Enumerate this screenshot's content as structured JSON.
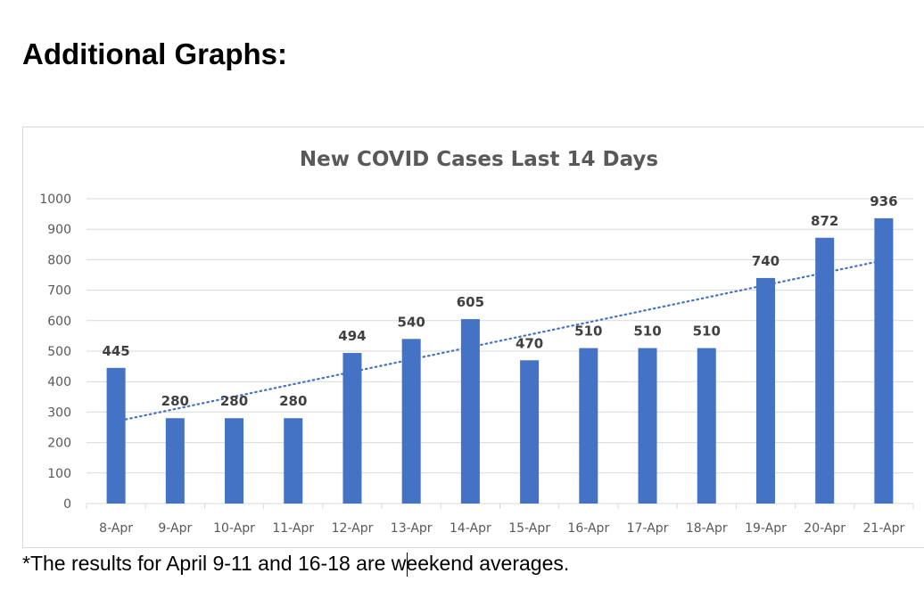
{
  "heading": "Additional Graphs:",
  "footnote": "*The results for April 9-11 and 16-18 are weekend averages.",
  "colors": {
    "bar": "#4472c4",
    "trendline": "#4472c4",
    "grid": "#d9d9d9",
    "title": "#595959",
    "label": "#404040",
    "tick": "#595959"
  },
  "chart_data": {
    "type": "bar",
    "title": "New COVID Cases Last 14 Days",
    "xlabel": "",
    "ylabel": "",
    "categories": [
      "8-Apr",
      "9-Apr",
      "10-Apr",
      "11-Apr",
      "12-Apr",
      "13-Apr",
      "14-Apr",
      "15-Apr",
      "16-Apr",
      "17-Apr",
      "18-Apr",
      "19-Apr",
      "20-Apr",
      "21-Apr"
    ],
    "values": [
      445,
      280,
      280,
      280,
      494,
      540,
      605,
      470,
      510,
      510,
      510,
      740,
      872,
      936
    ],
    "ylim": [
      0,
      1000
    ],
    "yticks": [
      0,
      100,
      200,
      300,
      400,
      500,
      600,
      700,
      800,
      900,
      1000
    ],
    "grid": true,
    "legend": "none",
    "trendline": {
      "type": "linear",
      "style": "dotted"
    }
  }
}
